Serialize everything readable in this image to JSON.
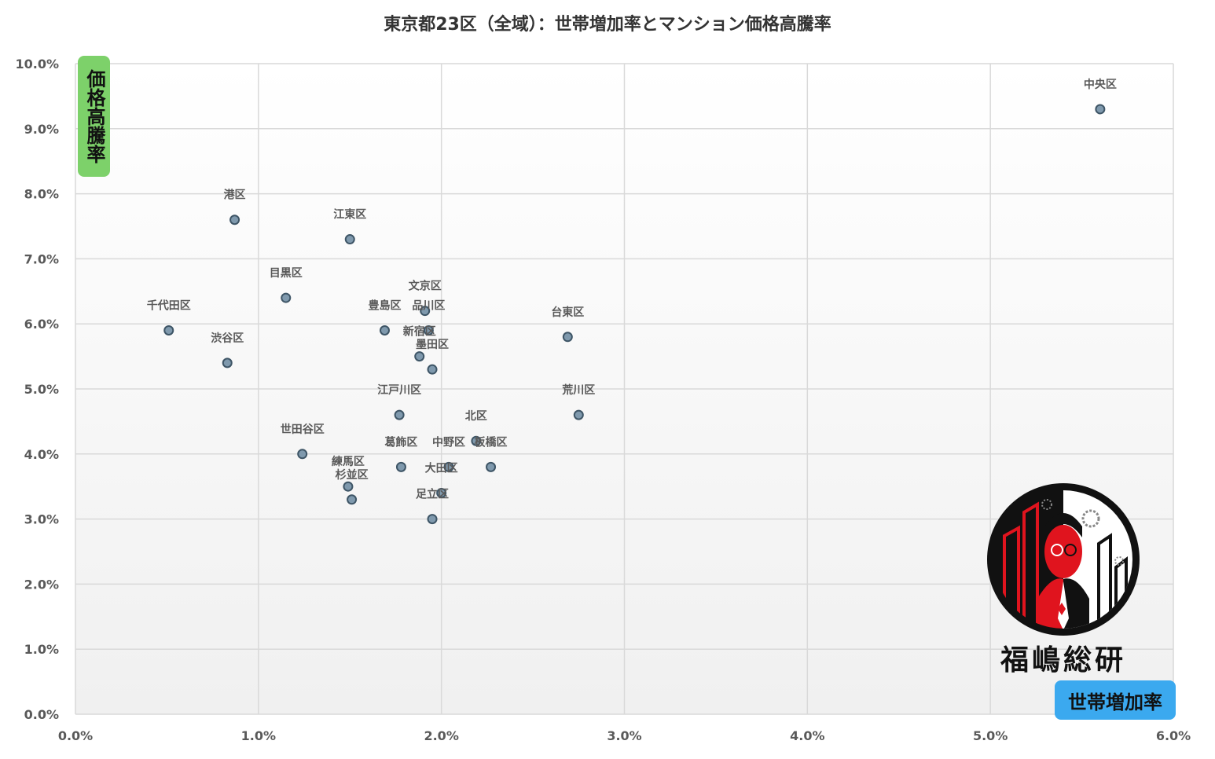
{
  "chart_data": {
    "type": "scatter",
    "title": "東京都23区（全域）：世帯増加率とマンション価格高騰率",
    "xlabel": "世帯増加率",
    "ylabel": "価格高騰率",
    "xlim": [
      0,
      6
    ],
    "ylim": [
      0,
      10
    ],
    "x_ticks": [
      "0.0%",
      "1.0%",
      "2.0%",
      "3.0%",
      "4.0%",
      "5.0%",
      "6.0%"
    ],
    "y_ticks": [
      "0.0%",
      "1.0%",
      "2.0%",
      "3.0%",
      "4.0%",
      "5.0%",
      "6.0%",
      "7.0%",
      "8.0%",
      "9.0%",
      "10.0%"
    ],
    "grid": true,
    "points": [
      {
        "label": "中央区",
        "x": 5.6,
        "y": 9.3
      },
      {
        "label": "港区",
        "x": 0.87,
        "y": 7.6
      },
      {
        "label": "江東区",
        "x": 1.5,
        "y": 7.3
      },
      {
        "label": "目黒区",
        "x": 1.15,
        "y": 6.4
      },
      {
        "label": "千代田区",
        "x": 0.51,
        "y": 5.9
      },
      {
        "label": "渋谷区",
        "x": 0.83,
        "y": 5.4
      },
      {
        "label": "文京区",
        "x": 1.91,
        "y": 6.2
      },
      {
        "label": "豊島区",
        "x": 1.69,
        "y": 5.9
      },
      {
        "label": "品川区",
        "x": 1.93,
        "y": 5.9
      },
      {
        "label": "新宿区",
        "x": 1.88,
        "y": 5.5
      },
      {
        "label": "墨田区",
        "x": 1.95,
        "y": 5.3
      },
      {
        "label": "台東区",
        "x": 2.69,
        "y": 5.8
      },
      {
        "label": "江戸川区",
        "x": 1.77,
        "y": 4.6
      },
      {
        "label": "荒川区",
        "x": 2.75,
        "y": 4.6
      },
      {
        "label": "北区",
        "x": 2.19,
        "y": 4.2
      },
      {
        "label": "世田谷区",
        "x": 1.24,
        "y": 4.0
      },
      {
        "label": "葛飾区",
        "x": 1.78,
        "y": 3.8
      },
      {
        "label": "中野区",
        "x": 2.04,
        "y": 3.8
      },
      {
        "label": "板橋区",
        "x": 2.27,
        "y": 3.8
      },
      {
        "label": "練馬区",
        "x": 1.49,
        "y": 3.5
      },
      {
        "label": "杉並区",
        "x": 1.51,
        "y": 3.3
      },
      {
        "label": "大田区",
        "x": 2.0,
        "y": 3.4
      },
      {
        "label": "足立区",
        "x": 1.95,
        "y": 3.0
      }
    ]
  },
  "colors": {
    "point_fill": "#7f99ad",
    "point_stroke": "#3e5566",
    "grid": "#d9d9d9",
    "ylabel_badge": "#7dd16a",
    "xlabel_badge": "#3ba9ef",
    "logo_red": "#e0141e"
  },
  "logo": {
    "text": "福嶋総研"
  }
}
